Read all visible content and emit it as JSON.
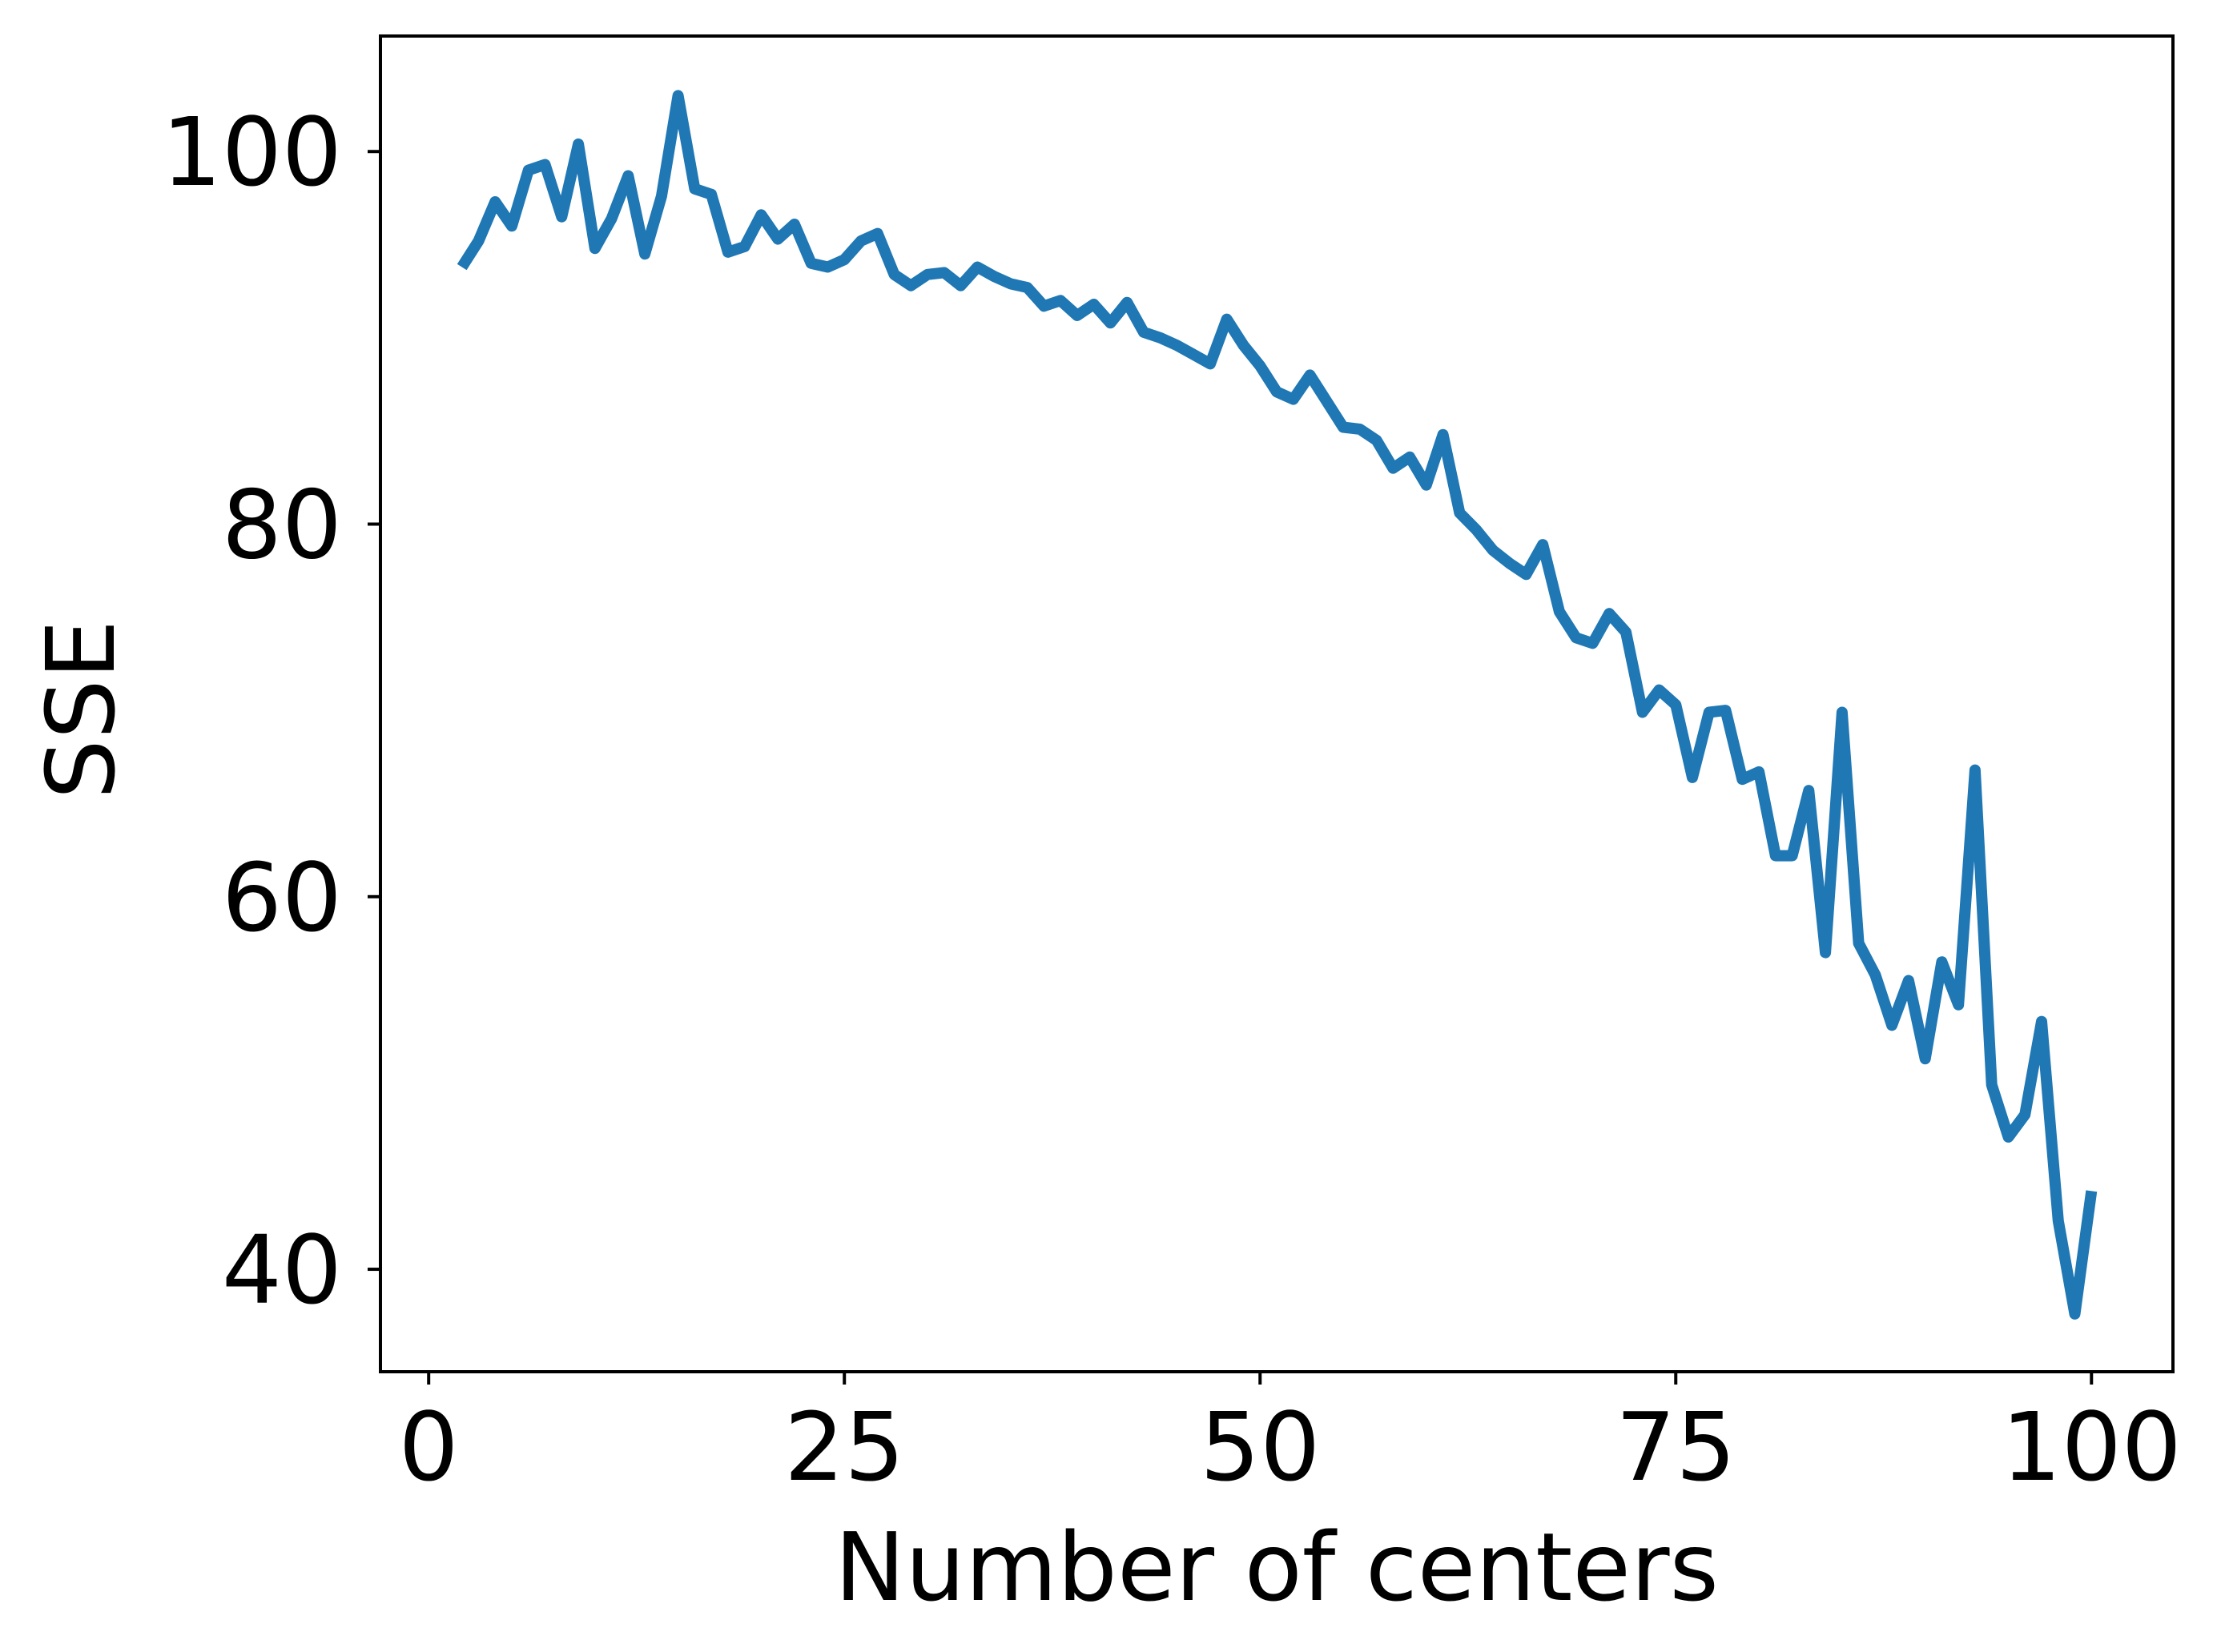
{
  "chart_data": {
    "type": "line",
    "title": "",
    "xlabel": "Number of centers",
    "ylabel": "SSE",
    "xlim": [
      -2.9,
      104.9
    ],
    "ylim": [
      34.5,
      106.2
    ],
    "xticks": [
      0,
      25,
      50,
      75,
      100
    ],
    "xtick_labels": [
      "0",
      "25",
      "50",
      "75",
      "100"
    ],
    "yticks": [
      40,
      60,
      80,
      100
    ],
    "ytick_labels": [
      "40",
      "60",
      "80",
      "100"
    ],
    "grid": false,
    "line_color": "#1f77b4",
    "series": [
      {
        "name": "SSE",
        "x": [
          2,
          3,
          4,
          5,
          6,
          7,
          8,
          9,
          10,
          11,
          12,
          13,
          14,
          15,
          16,
          17,
          18,
          19,
          20,
          21,
          22,
          23,
          24,
          25,
          26,
          27,
          28,
          29,
          30,
          31,
          32,
          33,
          34,
          35,
          36,
          37,
          38,
          39,
          40,
          41,
          42,
          43,
          44,
          45,
          46,
          47,
          48,
          49,
          50,
          51,
          52,
          53,
          54,
          55,
          56,
          57,
          58,
          59,
          60,
          61,
          62,
          63,
          64,
          65,
          66,
          67,
          68,
          69,
          70,
          71,
          72,
          73,
          74,
          75,
          76,
          77,
          78,
          79,
          80,
          81,
          82,
          83,
          84,
          85,
          86,
          87,
          88,
          89,
          90,
          91,
          92,
          93,
          94,
          95,
          96,
          97,
          98,
          99,
          100
        ],
        "values": [
          93.8,
          95.2,
          97.3,
          96.0,
          99.0,
          99.3,
          96.5,
          100.4,
          94.8,
          96.4,
          98.7,
          94.5,
          97.6,
          103.0,
          98.0,
          97.7,
          94.6,
          94.9,
          96.6,
          95.3,
          96.1,
          94.0,
          93.8,
          94.2,
          95.2,
          95.6,
          93.4,
          92.8,
          93.4,
          93.5,
          92.8,
          93.8,
          93.3,
          92.9,
          92.7,
          91.7,
          92.0,
          91.2,
          91.8,
          90.8,
          91.9,
          90.3,
          90.0,
          89.6,
          89.1,
          88.6,
          91.0,
          89.6,
          88.5,
          87.1,
          86.7,
          88.0,
          86.6,
          85.2,
          85.1,
          84.5,
          83.0,
          83.6,
          82.1,
          84.8,
          80.6,
          79.7,
          78.6,
          77.9,
          77.3,
          78.9,
          75.3,
          73.9,
          73.6,
          75.2,
          74.2,
          69.9,
          71.1,
          70.3,
          66.4,
          69.9,
          70.0,
          66.3,
          66.7,
          62.2,
          62.2,
          65.7,
          57.0,
          69.9,
          57.5,
          55.8,
          53.1,
          55.5,
          51.3,
          56.5,
          54.2,
          66.8,
          49.9,
          47.1,
          48.3,
          53.3,
          42.6,
          37.6,
          44.2
        ]
      }
    ]
  }
}
